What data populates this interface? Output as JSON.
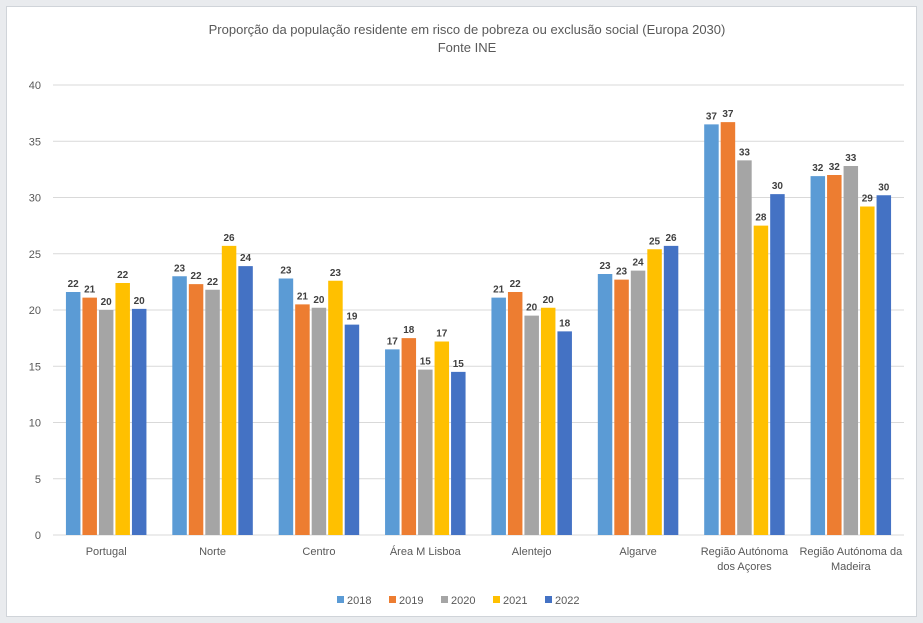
{
  "chart_data": {
    "type": "bar",
    "title_lines": [
      "Proporção da população residente em risco de pobreza ou exclusão social (Europa 2030)",
      "Fonte INE"
    ],
    "categories": [
      [
        "Portugal"
      ],
      [
        "Norte"
      ],
      [
        "Centro"
      ],
      [
        "Área M Lisboa"
      ],
      [
        "Alentejo"
      ],
      [
        "Algarve"
      ],
      [
        "Região Autónoma",
        "dos Açores"
      ],
      [
        "Região Autónoma da",
        "Madeira"
      ]
    ],
    "series": [
      {
        "name": "2018",
        "color": "#5b9bd5",
        "values": [
          21.6,
          23.0,
          22.8,
          16.5,
          21.1,
          23.2,
          36.5,
          31.9
        ],
        "labels": [
          "22",
          "23",
          "23",
          "17",
          "21",
          "23",
          "37",
          "32"
        ]
      },
      {
        "name": "2019",
        "color": "#ed7d31",
        "values": [
          21.1,
          22.3,
          20.5,
          17.5,
          21.6,
          22.7,
          36.7,
          32.0
        ],
        "labels": [
          "21",
          "22",
          "21",
          "18",
          "22",
          "23",
          "37",
          "32"
        ]
      },
      {
        "name": "2020",
        "color": "#a5a5a5",
        "values": [
          20.0,
          21.8,
          20.2,
          14.7,
          19.5,
          23.5,
          33.3,
          32.8
        ],
        "labels": [
          "20",
          "22",
          "20",
          "15",
          "20",
          "24",
          "33",
          "33"
        ]
      },
      {
        "name": "2021",
        "color": "#ffc000",
        "values": [
          22.4,
          25.7,
          22.6,
          17.2,
          20.2,
          25.4,
          27.5,
          29.2
        ],
        "labels": [
          "22",
          "26",
          "23",
          "17",
          "20",
          "25",
          "28",
          "29"
        ]
      },
      {
        "name": "2022",
        "color": "#4472c4",
        "values": [
          20.1,
          23.9,
          18.7,
          14.5,
          18.1,
          25.7,
          30.3,
          30.2
        ],
        "labels": [
          "20",
          "24",
          "19",
          "15",
          "18",
          "26",
          "30",
          "30"
        ]
      }
    ],
    "yticks": [
      "0",
      "5",
      "10",
      "15",
      "20",
      "25",
      "30",
      "35",
      "40"
    ],
    "ylim": [
      0,
      40
    ],
    "grid": true,
    "legend_position": "bottom"
  }
}
